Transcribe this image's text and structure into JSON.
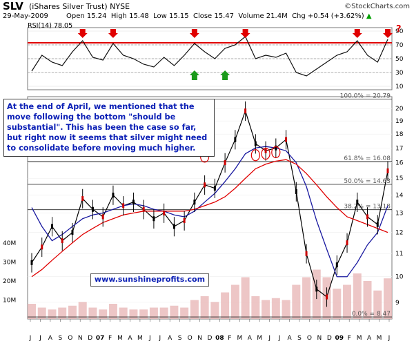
{
  "header": {
    "ticker": "SLV",
    "issuer": "(iShares Silver Trust)",
    "exchange": "NYSE",
    "date": "29-May-2009",
    "open_label": "Open",
    "open": "15.24",
    "high_label": "High",
    "high": "15.48",
    "low_label": "Low",
    "low": "15.15",
    "close_label": "Close",
    "close": "15.47",
    "volume_label": "Volume",
    "volume": "21.4M",
    "chg_label": "Chg",
    "chg": "+0.54 (+3.62%)",
    "up_arrow": "▲",
    "brand": "©StockCharts.com"
  },
  "annotation": {
    "text": "At the end of April, we mentioned that the move following the bottom \"should be substantial\". This has been the case so far, but right now it seems that silver might need to consolidate before moving much higher.",
    "website": "www.sunshineprofits.com"
  },
  "chart_data": [
    {
      "type": "line",
      "title": "RSI(14) 78.05",
      "yticks": [
        10,
        30,
        50,
        70,
        90
      ],
      "ylim": [
        5,
        95
      ],
      "reference_lines": [
        30,
        50,
        70,
        73
      ],
      "red_arrow_down_x": [
        "2006-11",
        "2007-02",
        "2007-10",
        "2008-03",
        "2009-02",
        "2009-05"
      ],
      "green_arrow_up_x": [
        "2007-10",
        "2008-01"
      ],
      "question_mark_text": "?",
      "series": [
        {
          "x": [
            "2006-06",
            "2006-07",
            "2006-08",
            "2006-09",
            "2006-10",
            "2006-11",
            "2006-12",
            "2007-01",
            "2007-02",
            "2007-03",
            "2007-04",
            "2007-05",
            "2007-06",
            "2007-07",
            "2007-08",
            "2007-09",
            "2007-10",
            "2007-11",
            "2007-12",
            "2008-01",
            "2008-02",
            "2008-03",
            "2008-04",
            "2008-05",
            "2008-06",
            "2008-07",
            "2008-08",
            "2008-09",
            "2008-10",
            "2008-11",
            "2008-12",
            "2009-01",
            "2009-02",
            "2009-03",
            "2009-04",
            "2009-05"
          ],
          "values": [
            32,
            55,
            45,
            40,
            60,
            76,
            52,
            48,
            72,
            55,
            50,
            42,
            38,
            52,
            40,
            55,
            72,
            60,
            50,
            65,
            70,
            82,
            50,
            55,
            52,
            58,
            30,
            25,
            35,
            45,
            55,
            60,
            76,
            55,
            45,
            78
          ]
        }
      ]
    },
    {
      "type": "line",
      "title": "",
      "yticks": [
        9,
        10,
        11,
        12,
        13,
        14,
        15,
        16,
        17,
        18,
        19,
        20
      ],
      "ylim": [
        8.4,
        21
      ],
      "ylabel_scale": "log",
      "x_month_labels": [
        "J",
        "J",
        "A",
        "S",
        "O",
        "N",
        "D",
        "07",
        "F",
        "M",
        "A",
        "M",
        "J",
        "J",
        "A",
        "S",
        "O",
        "N",
        "D",
        "08",
        "F",
        "M",
        "A",
        "M",
        "J",
        "J",
        "A",
        "S",
        "O",
        "N",
        "D",
        "09",
        "F",
        "M",
        "A",
        "M",
        "J"
      ],
      "fibonacci_levels": [
        {
          "label": "100.0% = 20.79",
          "value": 20.79
        },
        {
          "label": "61.8% = 16.08",
          "value": 16.08
        },
        {
          "label": "50.0% = 14.63",
          "value": 14.63
        },
        {
          "label": "38.2% = 13.18",
          "value": 13.18
        },
        {
          "label": "0.0% = 8.47",
          "value": 8.47
        }
      ],
      "series": [
        {
          "x": [
            "2006-06",
            "2006-07",
            "2006-08",
            "2006-09",
            "2006-10",
            "2006-11",
            "2006-12",
            "2007-01",
            "2007-02",
            "2007-03",
            "2007-04",
            "2007-05",
            "2007-06",
            "2007-07",
            "2007-08",
            "2007-09",
            "2007-10",
            "2007-11",
            "2007-12",
            "2008-01",
            "2008-02",
            "2008-03",
            "2008-04",
            "2008-05",
            "2008-06",
            "2008-07",
            "2008-08",
            "2008-09",
            "2008-10",
            "2008-11",
            "2008-12",
            "2009-01",
            "2009-02",
            "2009-03",
            "2009-04",
            "2009-05"
          ],
          "values": [
            10.6,
            11.3,
            12.3,
            11.6,
            12.0,
            13.8,
            13.2,
            12.8,
            14.0,
            13.4,
            13.6,
            13.2,
            12.7,
            13.0,
            12.3,
            12.6,
            13.6,
            14.6,
            14.4,
            16.0,
            17.6,
            19.8,
            17.3,
            16.8,
            17.0,
            17.6,
            14.2,
            11.0,
            9.5,
            9.2,
            10.5,
            11.5,
            13.6,
            12.8,
            12.4,
            15.47
          ]
        },
        {
          "x": [
            "2006-06",
            "2006-07",
            "2006-08",
            "2006-09",
            "2006-10",
            "2006-11",
            "2006-12",
            "2007-01",
            "2007-02",
            "2007-03",
            "2007-04",
            "2007-05",
            "2007-06",
            "2007-07",
            "2007-08",
            "2007-09",
            "2007-10",
            "2007-11",
            "2007-12",
            "2008-01",
            "2008-02",
            "2008-03",
            "2008-04",
            "2008-05",
            "2008-06",
            "2008-07",
            "2008-08",
            "2008-09",
            "2008-10",
            "2008-11",
            "2008-12",
            "2009-01",
            "2009-02",
            "2009-03",
            "2009-04",
            "2009-05"
          ],
          "values": [
            13.3,
            12.3,
            11.6,
            11.9,
            12.3,
            12.7,
            12.9,
            13.0,
            13.2,
            13.4,
            13.5,
            13.4,
            13.2,
            13.1,
            12.9,
            12.8,
            13.1,
            13.6,
            14.1,
            14.8,
            15.6,
            16.6,
            17.0,
            17.1,
            17.0,
            16.8,
            16.0,
            14.5,
            12.6,
            11.2,
            10.0,
            10.0,
            10.6,
            11.4,
            12.0,
            13.4
          ]
        },
        {
          "x": [
            "2006-06",
            "2006-07",
            "2006-08",
            "2006-09",
            "2006-10",
            "2006-11",
            "2006-12",
            "2007-01",
            "2007-02",
            "2007-03",
            "2007-04",
            "2007-05",
            "2007-06",
            "2007-07",
            "2007-08",
            "2007-09",
            "2007-10",
            "2007-11",
            "2007-12",
            "2008-01",
            "2008-02",
            "2008-03",
            "2008-04",
            "2008-05",
            "2008-06",
            "2008-07",
            "2008-08",
            "2008-09",
            "2008-10",
            "2008-11",
            "2008-12",
            "2009-01",
            "2009-02",
            "2009-03",
            "2009-04",
            "2009-05"
          ],
          "values": [
            10.0,
            10.3,
            10.7,
            11.1,
            11.5,
            11.9,
            12.2,
            12.5,
            12.7,
            12.9,
            13.0,
            13.1,
            13.1,
            13.1,
            13.1,
            13.1,
            13.2,
            13.4,
            13.6,
            13.9,
            14.4,
            15.0,
            15.6,
            15.9,
            16.1,
            16.2,
            15.9,
            15.3,
            14.6,
            13.9,
            13.3,
            12.8,
            12.6,
            12.4,
            12.2,
            12.0
          ]
        }
      ],
      "markers": [
        {
          "kind": "circle",
          "x": "2007-11",
          "y": 16.4
        },
        {
          "kind": "circle",
          "x": "2008-04",
          "y": 16.5
        },
        {
          "kind": "circle",
          "x": "2008-05",
          "y": 16.6
        },
        {
          "kind": "circle",
          "x": "2008-06",
          "y": 16.7
        }
      ]
    },
    {
      "type": "bar",
      "title": "",
      "yticks_labels": [
        "10M",
        "20M",
        "30M",
        "40M"
      ],
      "yticks": [
        10,
        20,
        30,
        40
      ],
      "ylim": [
        0,
        48
      ],
      "x": [
        "2006-06",
        "2006-07",
        "2006-08",
        "2006-09",
        "2006-10",
        "2006-11",
        "2006-12",
        "2007-01",
        "2007-02",
        "2007-03",
        "2007-04",
        "2007-05",
        "2007-06",
        "2007-07",
        "2007-08",
        "2007-09",
        "2007-10",
        "2007-11",
        "2007-12",
        "2008-01",
        "2008-02",
        "2008-03",
        "2008-04",
        "2008-05",
        "2008-06",
        "2008-07",
        "2008-08",
        "2008-09",
        "2008-10",
        "2008-11",
        "2008-12",
        "2009-01",
        "2009-02",
        "2009-03",
        "2009-04",
        "2009-05"
      ],
      "values": [
        8,
        6,
        5,
        6,
        7,
        9,
        6,
        5,
        8,
        6,
        5,
        5,
        6,
        6,
        7,
        6,
        10,
        12,
        9,
        14,
        18,
        22,
        12,
        10,
        11,
        10,
        18,
        22,
        26,
        22,
        16,
        18,
        24,
        20,
        15,
        21.4
      ]
    }
  ]
}
